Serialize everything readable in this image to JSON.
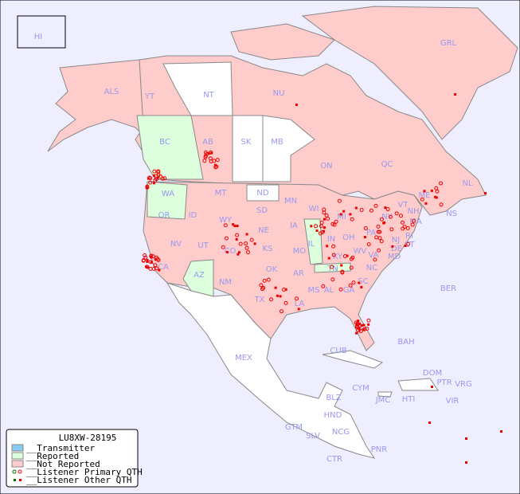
{
  "legend": {
    "title": "LU8XW-28195",
    "items": [
      {
        "label": "__Transmitter",
        "color": "#88ccee"
      },
      {
        "label": "__Reported",
        "color": "#ddffdd"
      },
      {
        "label": "__Not Reported",
        "color": "#ffcccc"
      },
      {
        "label": "__Listener Primary QTH",
        "marker": "open-circle"
      },
      {
        "label": "__Listener Other QTH",
        "marker": "square"
      }
    ]
  },
  "colors": {
    "ocean": "#eeeeff",
    "not_reported": "#ffcccc",
    "reported": "#ddffdd",
    "none": "#ffffff",
    "border": "#888888",
    "label": "#9999ee",
    "listener": "#ee0000",
    "listener_reported": "#006600"
  },
  "regions": [
    "HI",
    "ALS",
    "YT",
    "NT",
    "NU",
    "GRL",
    "BC",
    "AB",
    "SK",
    "MB",
    "ON",
    "QC",
    "NL",
    "NS",
    "WA",
    "OR",
    "MT",
    "ND",
    "MN",
    "WI",
    "MI",
    "SD",
    "WY",
    "ID",
    "NE",
    "IA",
    "IL",
    "IN",
    "OH",
    "PA",
    "NY",
    "VT",
    "NH",
    "ME",
    "MA",
    "RI",
    "CT",
    "NJ",
    "DE",
    "MD",
    "NV",
    "UT",
    "CO",
    "KS",
    "MO",
    "KY",
    "WV",
    "VA",
    "CA",
    "AZ",
    "NM",
    "OK",
    "AR",
    "TN",
    "NC",
    "SC",
    "MS",
    "AL",
    "GA",
    "TX",
    "LA",
    "FL",
    "MEX",
    "CUB",
    "BAH",
    "BER",
    "DOM",
    "PTR",
    "VRG",
    "CYM",
    "JMC",
    "HTI",
    "VIR",
    "BLZ",
    "HND",
    "GTM",
    "SLV",
    "NCG",
    "CTR",
    "PNR"
  ]
}
